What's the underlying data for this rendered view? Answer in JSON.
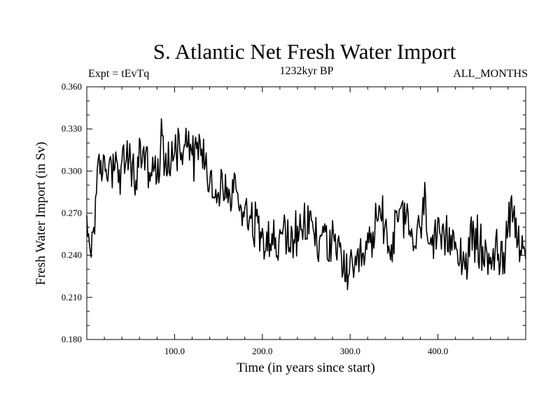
{
  "chart_data": {
    "type": "line",
    "title": "S. Atlantic Net Fresh Water Import",
    "subtitle": "1232kyr BP",
    "left_annotation": "Expt = tEvTq",
    "right_annotation": "ALL_MONTHS",
    "xlabel": "Time (in years since start)",
    "ylabel": "Fresh Water Import (in Sv)",
    "xlim": [
      0,
      500
    ],
    "ylim": [
      0.18,
      0.36
    ],
    "x_ticks": [
      100,
      200,
      300,
      400
    ],
    "x_tick_labels": [
      "100.0",
      "200.0",
      "300.0",
      "400.0"
    ],
    "y_ticks": [
      0.18,
      0.21,
      0.24,
      0.27,
      0.3,
      0.33,
      0.36
    ],
    "y_tick_labels": [
      "0.180",
      "0.210",
      "0.240",
      "0.270",
      "0.300",
      "0.330",
      "0.360"
    ],
    "series": [
      {
        "name": "Net fresh water import",
        "x": [
          0,
          5,
          10,
          15,
          20,
          25,
          30,
          35,
          40,
          45,
          50,
          55,
          60,
          65,
          70,
          75,
          80,
          85,
          90,
          95,
          100,
          105,
          110,
          115,
          120,
          125,
          130,
          135,
          140,
          145,
          150,
          155,
          160,
          165,
          170,
          175,
          180,
          185,
          190,
          195,
          200,
          205,
          210,
          215,
          220,
          225,
          230,
          235,
          240,
          245,
          250,
          255,
          260,
          265,
          270,
          275,
          280,
          285,
          290,
          295,
          300,
          305,
          310,
          315,
          320,
          325,
          330,
          335,
          340,
          345,
          350,
          355,
          360,
          365,
          370,
          375,
          380,
          385,
          390,
          395,
          400,
          405,
          410,
          415,
          420,
          425,
          430,
          435,
          440,
          445,
          450,
          455,
          460,
          465,
          470,
          475,
          480,
          485,
          490,
          495,
          500
        ],
        "y": [
          0.255,
          0.245,
          0.28,
          0.3,
          0.305,
          0.3,
          0.31,
          0.298,
          0.3,
          0.31,
          0.305,
          0.292,
          0.31,
          0.315,
          0.3,
          0.305,
          0.29,
          0.32,
          0.31,
          0.3,
          0.325,
          0.315,
          0.32,
          0.33,
          0.31,
          0.315,
          0.32,
          0.305,
          0.295,
          0.29,
          0.28,
          0.29,
          0.285,
          0.28,
          0.29,
          0.275,
          0.275,
          0.27,
          0.265,
          0.26,
          0.255,
          0.26,
          0.25,
          0.248,
          0.245,
          0.26,
          0.25,
          0.255,
          0.25,
          0.255,
          0.26,
          0.265,
          0.255,
          0.245,
          0.26,
          0.25,
          0.245,
          0.24,
          0.245,
          0.225,
          0.23,
          0.22,
          0.235,
          0.235,
          0.245,
          0.25,
          0.265,
          0.27,
          0.265,
          0.24,
          0.255,
          0.265,
          0.27,
          0.26,
          0.255,
          0.25,
          0.26,
          0.275,
          0.26,
          0.245,
          0.25,
          0.245,
          0.25,
          0.255,
          0.255,
          0.24,
          0.235,
          0.245,
          0.25,
          0.25,
          0.245,
          0.235,
          0.24,
          0.245,
          0.235,
          0.24,
          0.27,
          0.275,
          0.255,
          0.25,
          0.25
        ]
      }
    ]
  }
}
